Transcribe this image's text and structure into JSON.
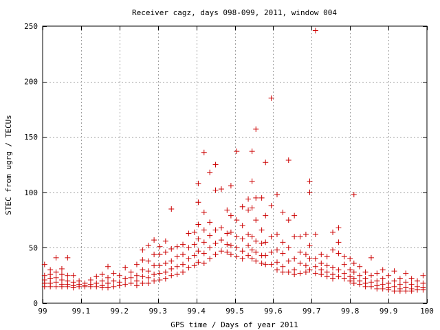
{
  "chart_data": {
    "type": "scatter",
    "title": "Receiver cagz, days 098-099, 2011, window 004",
    "xlabel": "GPS time / Days of year 2011",
    "ylabel": "STEC from ugrg / TECUs",
    "xlim": [
      99,
      100
    ],
    "ylim": [
      0,
      250
    ],
    "x_ticks": [
      99,
      99.1,
      99.2,
      99.3,
      99.4,
      99.5,
      99.6,
      99.7,
      99.8,
      99.9,
      100
    ],
    "x_tick_labels": [
      "99",
      "99.1",
      "99.2",
      "99.3",
      "99.4",
      "99.5",
      "99.6",
      "99.7",
      "99.8",
      "99.9",
      "100"
    ],
    "y_ticks": [
      0,
      50,
      100,
      150,
      200,
      250
    ],
    "y_tick_labels": [
      "0",
      "50",
      "100",
      "150",
      "200",
      "250"
    ],
    "grid": true,
    "legend": "none",
    "marker": "plus",
    "color": "#cc0000",
    "series": [
      {
        "points": [
          [
            99.005,
            35
          ],
          [
            99.005,
            25
          ],
          [
            99.005,
            21
          ],
          [
            99.005,
            18
          ],
          [
            99.005,
            15
          ],
          [
            99.02,
            30
          ],
          [
            99.02,
            26
          ],
          [
            99.02,
            22
          ],
          [
            99.02,
            18
          ],
          [
            99.02,
            15
          ],
          [
            99.035,
            41
          ],
          [
            99.035,
            28
          ],
          [
            99.035,
            23
          ],
          [
            99.035,
            19
          ],
          [
            99.035,
            15
          ],
          [
            99.05,
            31
          ],
          [
            99.05,
            26
          ],
          [
            99.05,
            21
          ],
          [
            99.05,
            17
          ],
          [
            99.05,
            15
          ],
          [
            99.065,
            41
          ],
          [
            99.065,
            25
          ],
          [
            99.065,
            20
          ],
          [
            99.065,
            17
          ],
          [
            99.065,
            15
          ],
          [
            99.08,
            25
          ],
          [
            99.08,
            19
          ],
          [
            99.08,
            16
          ],
          [
            99.08,
            14
          ],
          [
            99.095,
            20
          ],
          [
            99.095,
            17
          ],
          [
            99.095,
            15
          ],
          [
            99.11,
            18
          ],
          [
            99.11,
            16
          ],
          [
            99.11,
            15
          ],
          [
            99.125,
            21
          ],
          [
            99.125,
            17
          ],
          [
            99.125,
            15
          ],
          [
            99.14,
            24
          ],
          [
            99.14,
            18
          ],
          [
            99.14,
            15
          ],
          [
            99.155,
            26
          ],
          [
            99.155,
            20
          ],
          [
            99.155,
            16
          ],
          [
            99.155,
            14
          ],
          [
            99.17,
            33
          ],
          [
            99.17,
            23
          ],
          [
            99.17,
            18
          ],
          [
            99.17,
            14
          ],
          [
            99.185,
            27
          ],
          [
            99.185,
            20
          ],
          [
            99.185,
            15
          ],
          [
            99.2,
            25
          ],
          [
            99.2,
            19
          ],
          [
            99.2,
            16
          ],
          [
            99.215,
            32
          ],
          [
            99.215,
            22
          ],
          [
            99.215,
            17
          ],
          [
            99.23,
            28
          ],
          [
            99.23,
            23
          ],
          [
            99.23,
            18
          ],
          [
            99.245,
            35
          ],
          [
            99.245,
            25
          ],
          [
            99.245,
            20
          ],
          [
            99.245,
            16
          ],
          [
            99.26,
            48
          ],
          [
            99.26,
            39
          ],
          [
            99.26,
            30
          ],
          [
            99.26,
            24
          ],
          [
            99.26,
            18
          ],
          [
            99.275,
            52
          ],
          [
            99.275,
            38
          ],
          [
            99.275,
            29
          ],
          [
            99.275,
            23
          ],
          [
            99.275,
            18
          ],
          [
            99.29,
            57
          ],
          [
            99.29,
            44
          ],
          [
            99.29,
            34
          ],
          [
            99.29,
            26
          ],
          [
            99.29,
            20
          ],
          [
            99.305,
            51
          ],
          [
            99.305,
            44
          ],
          [
            99.305,
            34
          ],
          [
            99.305,
            27
          ],
          [
            99.305,
            21
          ],
          [
            99.32,
            56
          ],
          [
            99.32,
            46
          ],
          [
            99.32,
            36
          ],
          [
            99.32,
            28
          ],
          [
            99.32,
            22
          ],
          [
            99.335,
            85
          ],
          [
            99.335,
            49
          ],
          [
            99.335,
            38
          ],
          [
            99.335,
            31
          ],
          [
            99.335,
            25
          ],
          [
            99.35,
            51
          ],
          [
            99.35,
            42
          ],
          [
            99.35,
            33
          ],
          [
            99.35,
            26
          ],
          [
            99.365,
            53
          ],
          [
            99.365,
            44
          ],
          [
            99.365,
            35
          ],
          [
            99.365,
            28
          ],
          [
            99.38,
            63
          ],
          [
            99.38,
            50
          ],
          [
            99.38,
            40
          ],
          [
            99.38,
            32
          ],
          [
            99.395,
            64
          ],
          [
            99.395,
            53
          ],
          [
            99.395,
            43
          ],
          [
            99.395,
            34
          ],
          [
            99.405,
            108
          ],
          [
            99.405,
            91
          ],
          [
            99.405,
            71
          ],
          [
            99.405,
            58
          ],
          [
            99.405,
            47
          ],
          [
            99.405,
            37
          ],
          [
            99.42,
            136
          ],
          [
            99.42,
            82
          ],
          [
            99.42,
            66
          ],
          [
            99.42,
            55
          ],
          [
            99.42,
            45
          ],
          [
            99.42,
            36
          ],
          [
            99.435,
            118
          ],
          [
            99.435,
            73
          ],
          [
            99.435,
            61
          ],
          [
            99.435,
            50
          ],
          [
            99.435,
            40
          ],
          [
            99.45,
            125
          ],
          [
            99.45,
            102
          ],
          [
            99.45,
            66
          ],
          [
            99.45,
            54
          ],
          [
            99.45,
            44
          ],
          [
            99.465,
            103
          ],
          [
            99.465,
            68
          ],
          [
            99.465,
            57
          ],
          [
            99.465,
            47
          ],
          [
            99.48,
            84
          ],
          [
            99.48,
            63
          ],
          [
            99.48,
            53
          ],
          [
            99.48,
            46
          ],
          [
            99.49,
            106
          ],
          [
            99.49,
            79
          ],
          [
            99.49,
            64
          ],
          [
            99.49,
            52
          ],
          [
            99.49,
            44
          ],
          [
            99.505,
            137
          ],
          [
            99.505,
            75
          ],
          [
            99.505,
            60
          ],
          [
            99.505,
            50
          ],
          [
            99.505,
            42
          ],
          [
            99.52,
            87
          ],
          [
            99.52,
            70
          ],
          [
            99.52,
            58
          ],
          [
            99.52,
            47
          ],
          [
            99.52,
            40
          ],
          [
            99.535,
            94
          ],
          [
            99.535,
            84
          ],
          [
            99.535,
            62
          ],
          [
            99.535,
            52
          ],
          [
            99.535,
            43
          ],
          [
            99.545,
            137
          ],
          [
            99.545,
            110
          ],
          [
            99.545,
            86
          ],
          [
            99.545,
            60
          ],
          [
            99.545,
            48
          ],
          [
            99.545,
            40
          ],
          [
            99.555,
            157
          ],
          [
            99.555,
            95
          ],
          [
            99.555,
            75
          ],
          [
            99.555,
            56
          ],
          [
            99.555,
            46
          ],
          [
            99.555,
            38
          ],
          [
            99.57,
            95
          ],
          [
            99.57,
            66
          ],
          [
            99.57,
            54
          ],
          [
            99.57,
            43
          ],
          [
            99.57,
            36
          ],
          [
            99.58,
            127
          ],
          [
            99.58,
            79
          ],
          [
            99.58,
            55
          ],
          [
            99.58,
            43
          ],
          [
            99.58,
            35
          ],
          [
            99.595,
            185
          ],
          [
            99.595,
            88
          ],
          [
            99.595,
            60
          ],
          [
            99.595,
            46
          ],
          [
            99.595,
            35
          ],
          [
            99.61,
            98
          ],
          [
            99.61,
            62
          ],
          [
            99.61,
            48
          ],
          [
            99.61,
            37
          ],
          [
            99.61,
            30
          ],
          [
            99.625,
            82
          ],
          [
            99.625,
            55
          ],
          [
            99.625,
            45
          ],
          [
            99.625,
            33
          ],
          [
            99.625,
            28
          ],
          [
            99.64,
            129
          ],
          [
            99.64,
            75
          ],
          [
            99.64,
            50
          ],
          [
            99.64,
            38
          ],
          [
            99.64,
            28
          ],
          [
            99.655,
            79
          ],
          [
            99.655,
            60
          ],
          [
            99.655,
            40
          ],
          [
            99.655,
            30
          ],
          [
            99.655,
            26
          ],
          [
            99.67,
            60
          ],
          [
            99.67,
            46
          ],
          [
            99.67,
            36
          ],
          [
            99.67,
            27
          ],
          [
            99.685,
            62
          ],
          [
            99.685,
            44
          ],
          [
            99.685,
            34
          ],
          [
            99.685,
            28
          ],
          [
            99.695,
            110
          ],
          [
            99.695,
            100
          ],
          [
            99.695,
            52
          ],
          [
            99.695,
            40
          ],
          [
            99.695,
            30
          ],
          [
            99.71,
            246
          ],
          [
            99.71,
            62
          ],
          [
            99.71,
            40
          ],
          [
            99.71,
            33
          ],
          [
            99.71,
            27
          ],
          [
            99.725,
            44
          ],
          [
            99.725,
            36
          ],
          [
            99.725,
            30
          ],
          [
            99.725,
            26
          ],
          [
            99.74,
            42
          ],
          [
            99.74,
            34
          ],
          [
            99.74,
            28
          ],
          [
            99.74,
            24
          ],
          [
            99.755,
            64
          ],
          [
            99.755,
            48
          ],
          [
            99.755,
            32
          ],
          [
            99.755,
            26
          ],
          [
            99.755,
            22
          ],
          [
            99.77,
            68
          ],
          [
            99.77,
            55
          ],
          [
            99.77,
            45
          ],
          [
            99.77,
            30
          ],
          [
            99.77,
            24
          ],
          [
            99.785,
            42
          ],
          [
            99.785,
            35
          ],
          [
            99.785,
            27
          ],
          [
            99.785,
            22
          ],
          [
            99.8,
            40
          ],
          [
            99.8,
            30
          ],
          [
            99.8,
            24
          ],
          [
            99.8,
            20
          ],
          [
            99.81,
            98
          ],
          [
            99.81,
            36
          ],
          [
            99.81,
            28
          ],
          [
            99.81,
            22
          ],
          [
            99.81,
            18
          ],
          [
            99.825,
            33
          ],
          [
            99.825,
            25
          ],
          [
            99.825,
            20
          ],
          [
            99.825,
            17
          ],
          [
            99.84,
            28
          ],
          [
            99.84,
            22
          ],
          [
            99.84,
            18
          ],
          [
            99.84,
            15
          ],
          [
            99.855,
            41
          ],
          [
            99.855,
            25
          ],
          [
            99.855,
            19
          ],
          [
            99.855,
            15
          ],
          [
            99.87,
            27
          ],
          [
            99.87,
            20
          ],
          [
            99.87,
            16
          ],
          [
            99.87,
            13
          ],
          [
            99.885,
            30
          ],
          [
            99.885,
            22
          ],
          [
            99.885,
            17
          ],
          [
            99.885,
            13
          ],
          [
            99.9,
            25
          ],
          [
            99.9,
            18
          ],
          [
            99.9,
            14
          ],
          [
            99.9,
            12
          ],
          [
            99.915,
            29
          ],
          [
            99.915,
            20
          ],
          [
            99.915,
            15
          ],
          [
            99.915,
            11
          ],
          [
            99.93,
            22
          ],
          [
            99.93,
            17
          ],
          [
            99.93,
            13
          ],
          [
            99.93,
            11
          ],
          [
            99.945,
            27
          ],
          [
            99.945,
            19
          ],
          [
            99.945,
            14
          ],
          [
            99.945,
            11
          ],
          [
            99.96,
            22
          ],
          [
            99.96,
            17
          ],
          [
            99.96,
            13
          ],
          [
            99.96,
            11
          ],
          [
            99.975,
            20
          ],
          [
            99.975,
            15
          ],
          [
            99.975,
            12
          ],
          [
            99.99,
            25
          ],
          [
            99.99,
            18
          ],
          [
            99.99,
            14
          ],
          [
            99.99,
            12
          ]
        ]
      }
    ]
  }
}
